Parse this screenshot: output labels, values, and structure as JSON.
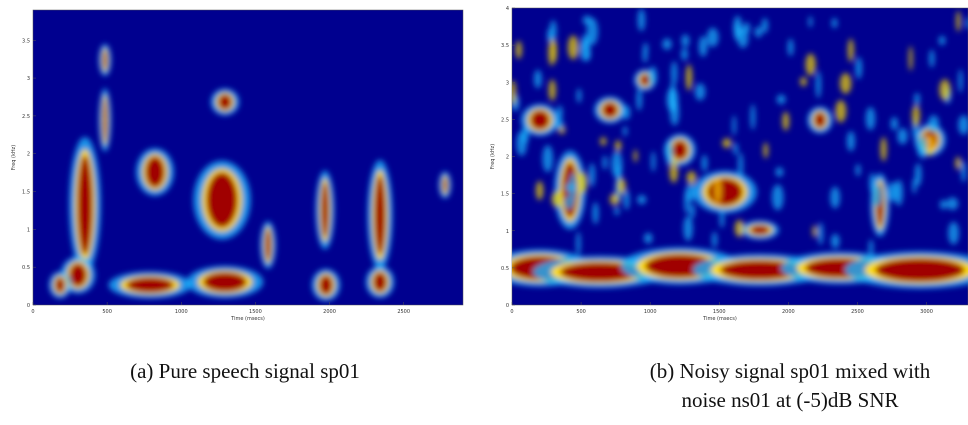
{
  "figures": [
    {
      "caption_lines": [
        "(a) Pure speech signal sp01"
      ],
      "x_label": "Time (msecs)",
      "y_label": "Freq (kHz)",
      "x_ticks": [
        0,
        500,
        1000,
        1500,
        2000,
        2500
      ],
      "y_ticks": [
        0,
        0.5,
        1,
        1.5,
        2,
        2.5,
        3,
        3.5
      ]
    },
    {
      "caption_lines": [
        "(b) Noisy signal sp01 mixed with",
        "noise ns01 at (-5)dB SNR"
      ],
      "x_label": "Time (msecs)",
      "y_label": "Freq (kHz)",
      "x_ticks": [
        0,
        500,
        1000,
        1500,
        2000,
        2500,
        3000
      ],
      "y_ticks": [
        0,
        0.5,
        1,
        1.5,
        2,
        2.5,
        3,
        3.5,
        4
      ]
    }
  ]
}
